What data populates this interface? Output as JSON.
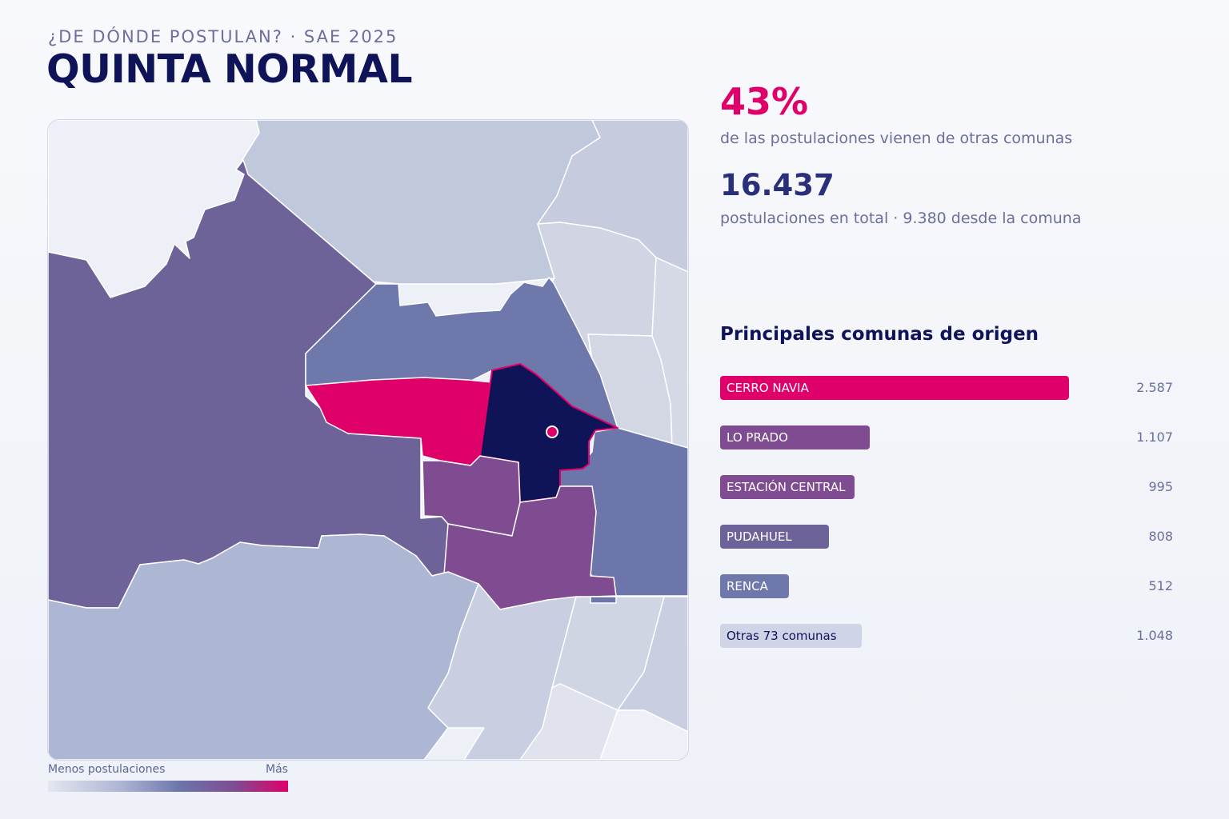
{
  "header": {
    "kicker": "¿DE DÓNDE POSTULAN? · SAE 2025",
    "title": "QUINTA NORMAL"
  },
  "stats": {
    "pct_value": "43%",
    "pct_caption": "de las postulaciones vienen de otras comunas",
    "total_value": "16.437",
    "total_caption": "postulaciones en total · 9.380 desde la comuna"
  },
  "legend": {
    "low_label": "Menos postulaciones",
    "high_label": "Más"
  },
  "colors": {
    "highlight": "#df0069",
    "selected_commune": "#0f1358",
    "lo_prado": "#7f4c92",
    "pudahuel": "#6e6399",
    "renca": "#6e78aa",
    "otras": "#cfd4e6"
  },
  "chart_data": {
    "type": "bar",
    "title": "Principales comunas de origen",
    "orientation": "horizontal",
    "categories": [
      "CERRO NAVIA",
      "LO PRADO",
      "ESTACIÓN CENTRAL",
      "PUDAHUEL",
      "RENCA",
      "Otras 73 comunas"
    ],
    "values": [
      2587,
      1107,
      995,
      808,
      512,
      1048
    ],
    "value_labels": [
      "2.587",
      "1.107",
      "995",
      "808",
      "512",
      "1.048"
    ],
    "bar_colors": [
      "#df0069",
      "#7f4c92",
      "#7f4c92",
      "#6e6399",
      "#6e78aa",
      "#cfd4e6"
    ],
    "label_colors": [
      "#ffffff",
      "#ffffff",
      "#ffffff",
      "#ffffff",
      "#ffffff",
      "#0f1358"
    ],
    "xlim": [
      0,
      2587
    ]
  }
}
